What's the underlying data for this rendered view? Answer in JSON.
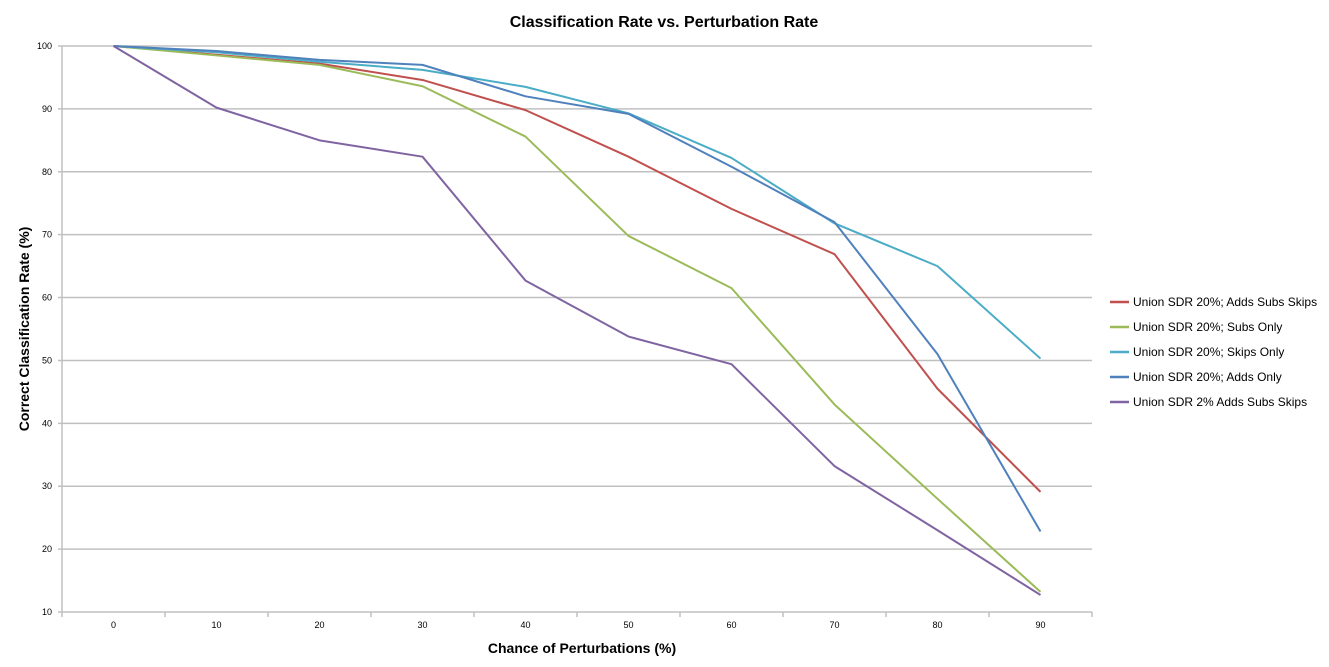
{
  "chart_data": {
    "type": "line",
    "title": "Classification Rate vs. Perturbation Rate",
    "xlabel": "Chance of Perturbations (%)",
    "ylabel": "Correct Classification Rate (%)",
    "categories": [
      "0",
      "10",
      "20",
      "30",
      "40",
      "50",
      "60",
      "70",
      "80",
      "90"
    ],
    "ylim": [
      10,
      100
    ],
    "yticks": [
      "10",
      "20",
      "30",
      "40",
      "50",
      "60",
      "70",
      "80",
      "90",
      "100"
    ],
    "grid": true,
    "legend_position": "right",
    "series": [
      {
        "name": "Union SDR 20%; Adds Subs Skips",
        "color": "#c0504d",
        "values": [
          100,
          98.6,
          97.2,
          94.6,
          89.8,
          82.4,
          74.1,
          66.9,
          45.5,
          29.1
        ]
      },
      {
        "name": "Union SDR 20%; Subs Only",
        "color": "#9bbb59",
        "values": [
          100,
          98.5,
          97.0,
          93.6,
          85.6,
          69.8,
          61.5,
          43.0,
          28.0,
          13.2
        ]
      },
      {
        "name": "Union SDR 20%; Skips Only",
        "color": "#4bacc6",
        "values": [
          100,
          99.0,
          97.5,
          96.2,
          93.5,
          89.3,
          82.2,
          71.8,
          65.0,
          50.3
        ]
      },
      {
        "name": "Union SDR 20%; Adds Only",
        "color": "#4f81bd",
        "values": [
          100,
          99.2,
          97.8,
          97.0,
          92.0,
          89.2,
          80.8,
          72.0,
          51.0,
          22.8
        ]
      },
      {
        "name": "Union SDR 2%  Adds Subs Skips",
        "color": "#8064a2",
        "values": [
          100,
          90.2,
          85.0,
          82.4,
          62.7,
          53.8,
          49.4,
          33.2,
          23.0,
          12.7
        ]
      }
    ]
  }
}
